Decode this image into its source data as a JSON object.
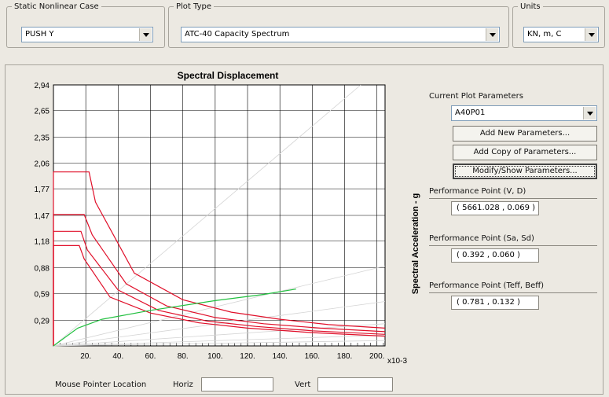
{
  "case_group": {
    "label": "Static Nonlinear Case",
    "value": "PUSH Y"
  },
  "plot_type_group": {
    "label": "Plot Type",
    "value": "ATC-40 Capacity Spectrum"
  },
  "units_group": {
    "label": "Units",
    "value": "KN, m, C"
  },
  "params": {
    "label": "Current Plot Parameters",
    "value": "A40P01",
    "add_new": "Add New Parameters...",
    "add_copy": "Add Copy of Parameters...",
    "modify_show": "Modify/Show Parameters..."
  },
  "performance": {
    "vd_label": "Performance Point (V, D)",
    "vd_value": "( 5661.028 , 0.069 )",
    "sasd_label": "Performance Point (Sa, Sd)",
    "sasd_value": "( 0.392 , 0.060 )",
    "teff_label": "Performance Point (Teff, Beff)",
    "teff_value": "( 0.781 , 0.132 )"
  },
  "pointer": {
    "label": "Mouse Pointer Location",
    "horiz_label": "Horiz",
    "vert_label": "Vert",
    "horiz_value": "",
    "vert_value": ""
  },
  "colors": {
    "demand": "#e0102a",
    "capacity": "#22c040",
    "period": "#d4d4d4",
    "grid": "#000000"
  },
  "chart_data": {
    "type": "line",
    "title": "Spectral Displacement",
    "ylabel": "Spectral Acceleration - g",
    "x_multiplier_label": "x10-3",
    "xlim": [
      0,
      205
    ],
    "ylim": [
      0,
      2.94
    ],
    "x_ticks": [
      20,
      40,
      60,
      80,
      100,
      120,
      140,
      160,
      180,
      200
    ],
    "x_tick_labels": [
      "20.",
      "40.",
      "60.",
      "80.",
      "100.",
      "120.",
      "140.",
      "160.",
      "180.",
      "200."
    ],
    "y_ticks": [
      0.29,
      0.59,
      0.88,
      1.18,
      1.47,
      1.77,
      2.06,
      2.35,
      2.65,
      2.94
    ],
    "y_tick_labels": [
      "0,29",
      "0,59",
      "0,88",
      "1,18",
      "1,47",
      "1,77",
      "2,06",
      "2,35",
      "2,65",
      "2,94"
    ],
    "grid": true,
    "series": [
      {
        "kind": "demand",
        "points": [
          [
            0,
            0
          ],
          [
            0,
            1.96
          ],
          [
            22,
            1.96
          ],
          [
            26,
            1.62
          ],
          [
            50,
            0.82
          ],
          [
            80,
            0.52
          ],
          [
            110,
            0.38
          ],
          [
            140,
            0.3
          ],
          [
            170,
            0.24
          ],
          [
            205,
            0.2
          ]
        ]
      },
      {
        "kind": "demand",
        "points": [
          [
            0,
            0
          ],
          [
            0,
            1.48
          ],
          [
            19,
            1.48
          ],
          [
            24,
            1.25
          ],
          [
            45,
            0.7
          ],
          [
            70,
            0.45
          ],
          [
            100,
            0.32
          ],
          [
            130,
            0.25
          ],
          [
            165,
            0.2
          ],
          [
            205,
            0.16
          ]
        ]
      },
      {
        "kind": "demand",
        "points": [
          [
            0,
            0
          ],
          [
            0,
            1.29
          ],
          [
            17,
            1.29
          ],
          [
            21,
            1.08
          ],
          [
            40,
            0.63
          ],
          [
            65,
            0.4
          ],
          [
            95,
            0.28
          ],
          [
            125,
            0.22
          ],
          [
            160,
            0.17
          ],
          [
            205,
            0.13
          ]
        ]
      },
      {
        "kind": "demand",
        "points": [
          [
            0,
            0
          ],
          [
            0,
            1.13
          ],
          [
            16,
            1.13
          ],
          [
            19,
            0.98
          ],
          [
            35,
            0.55
          ],
          [
            60,
            0.37
          ],
          [
            90,
            0.26
          ],
          [
            120,
            0.2
          ],
          [
            160,
            0.15
          ],
          [
            205,
            0.11
          ]
        ]
      },
      {
        "kind": "capacity",
        "points": [
          [
            0,
            0
          ],
          [
            15,
            0.2
          ],
          [
            30,
            0.3
          ],
          [
            60,
            0.4
          ],
          [
            100,
            0.51
          ],
          [
            130,
            0.58
          ],
          [
            150,
            0.64
          ]
        ]
      },
      {
        "kind": "period",
        "points": [
          [
            0,
            0
          ],
          [
            190,
            2.94
          ]
        ]
      },
      {
        "kind": "period",
        "points": [
          [
            0,
            0
          ],
          [
            205,
            0.9
          ]
        ]
      },
      {
        "kind": "period",
        "points": [
          [
            0,
            0
          ],
          [
            205,
            0.5
          ]
        ]
      },
      {
        "kind": "period",
        "points": [
          [
            0,
            0
          ],
          [
            205,
            0.25
          ]
        ]
      },
      {
        "kind": "period",
        "points": [
          [
            0,
            0
          ],
          [
            205,
            0.12
          ]
        ]
      },
      {
        "kind": "period",
        "points": [
          [
            0,
            0
          ],
          [
            205,
            0.06
          ]
        ]
      }
    ]
  }
}
